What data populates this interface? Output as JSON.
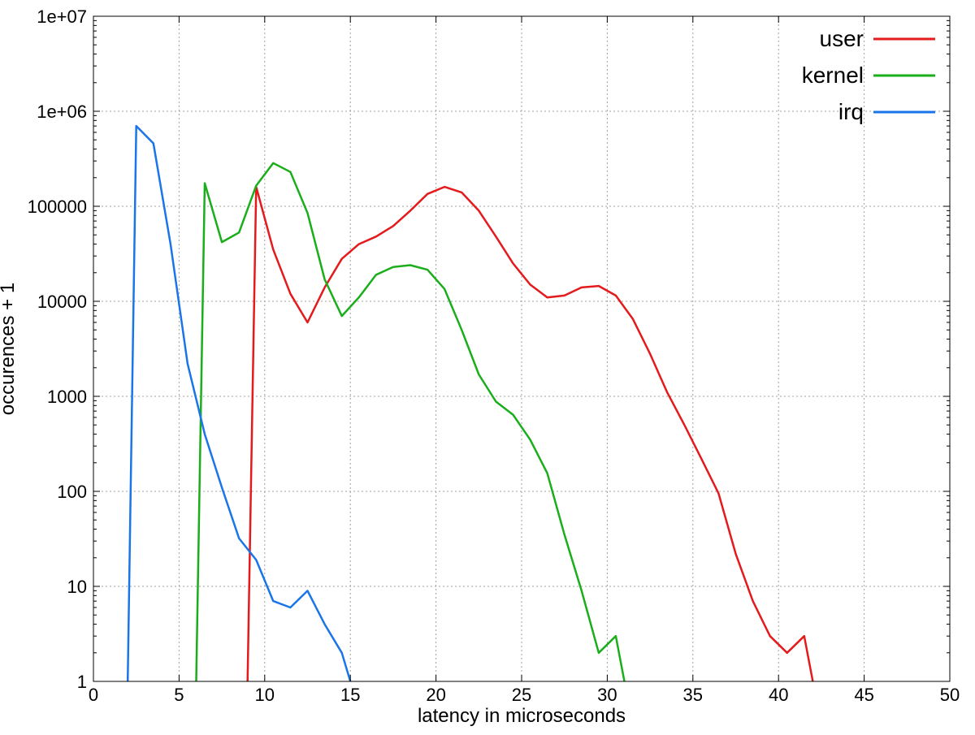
{
  "chart_data": {
    "type": "line",
    "title": "",
    "xlabel": "latency in microseconds",
    "ylabel": "occurences + 1",
    "xlim": [
      0,
      50
    ],
    "ylim": [
      1,
      10000000
    ],
    "yscale": "log",
    "grid": true,
    "legend_position": "top-right",
    "xticks": [
      0,
      5,
      10,
      15,
      20,
      25,
      30,
      35,
      40,
      45,
      50
    ],
    "xtick_labels": [
      "0",
      "5",
      "10",
      "15",
      "20",
      "25",
      "30",
      "35",
      "40",
      "45",
      "50"
    ],
    "yticks": [
      1,
      10,
      100,
      1000,
      10000,
      100000,
      1000000,
      10000000
    ],
    "ytick_labels": [
      "1",
      "10",
      "100",
      "1000",
      "10000",
      "100000",
      "1e+06",
      "1e+07"
    ],
    "series": [
      {
        "name": "user",
        "color": "#e41a1c",
        "x": [
          9,
          9.5,
          10.5,
          11.5,
          12.5,
          13.5,
          14.5,
          15.5,
          16.5,
          17.5,
          18.5,
          19.5,
          20.5,
          21.5,
          22.5,
          23.5,
          24.5,
          25.5,
          26.5,
          27.5,
          28.5,
          29.5,
          30.5,
          31.5,
          32.5,
          33.5,
          34.5,
          35.5,
          36.5,
          37.5,
          38.5,
          39.5,
          40.5,
          41.5,
          42
        ],
        "y": [
          1,
          160000,
          35000,
          12000,
          6000,
          14000,
          28000,
          40000,
          48000,
          62000,
          90000,
          135000,
          160000,
          140000,
          90000,
          48000,
          25000,
          15000,
          11000,
          11500,
          14000,
          14500,
          11500,
          6500,
          2800,
          1100,
          500,
          220,
          95,
          22,
          7,
          3,
          2,
          3,
          1
        ]
      },
      {
        "name": "kernel",
        "color": "#1aae1a",
        "x": [
          6,
          6.5,
          7.5,
          8.5,
          9.5,
          10.5,
          11.5,
          12.5,
          13.5,
          14.5,
          15.5,
          16.5,
          17.5,
          18.5,
          19.5,
          20.5,
          21.5,
          22.5,
          23.5,
          24.5,
          25.5,
          26.5,
          27.5,
          28.5,
          29.5,
          30.5,
          31
        ],
        "y": [
          1,
          175000,
          42000,
          53000,
          165000,
          285000,
          230000,
          85000,
          17000,
          7000,
          11000,
          19000,
          23000,
          24000,
          21500,
          13500,
          5000,
          1700,
          880,
          640,
          350,
          155,
          35,
          9,
          2,
          3,
          1
        ]
      },
      {
        "name": "irq",
        "color": "#1a75e8",
        "x": [
          2,
          2.5,
          3.5,
          4.5,
          5.5,
          6.5,
          7.5,
          8.5,
          9.5,
          10.5,
          11.5,
          12.5,
          13.5,
          14.5,
          15
        ],
        "y": [
          1,
          700000,
          460000,
          40000,
          2200,
          400,
          110,
          32,
          19,
          7,
          6,
          9,
          4,
          2,
          1
        ]
      }
    ]
  }
}
